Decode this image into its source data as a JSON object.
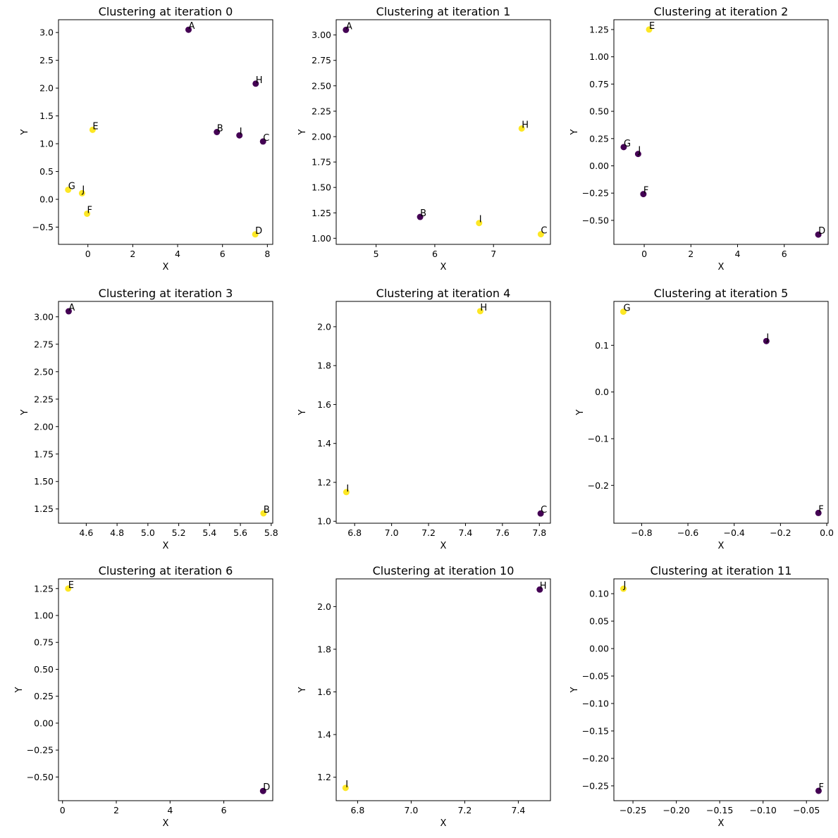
{
  "chart_data": {
    "type": "scatter",
    "colors": {
      "cluster_0": "#440154",
      "cluster_1": "#fde725"
    },
    "grid": false,
    "subplots": [
      {
        "title": "Clustering at iteration 0",
        "xlabel": "X",
        "ylabel": "Y",
        "xlim": [
          -1.31,
          8.24
        ],
        "ylim": [
          -0.81,
          3.23
        ],
        "xticks": [
          0,
          2,
          4,
          6,
          8
        ],
        "yticks": [
          -0.5,
          0.0,
          0.5,
          1.0,
          1.5,
          2.0,
          2.5,
          3.0
        ],
        "xtick_labels": [
          "0",
          "2",
          "4",
          "6",
          "8"
        ],
        "ytick_labels": [
          "−0.5",
          "0.0",
          "0.5",
          "1.0",
          "1.5",
          "2.0",
          "2.5",
          "3.0"
        ],
        "points": [
          {
            "label": "A",
            "x": 4.486,
            "y": 3.05,
            "cluster": 0
          },
          {
            "label": "H",
            "x": 7.48,
            "y": 2.08,
            "cluster": 0
          },
          {
            "label": "B",
            "x": 5.75,
            "y": 1.21,
            "cluster": 0
          },
          {
            "label": "I",
            "x": 6.755,
            "y": 1.15,
            "cluster": 0
          },
          {
            "label": "C",
            "x": 7.807,
            "y": 1.04,
            "cluster": 0
          },
          {
            "label": "E",
            "x": 0.21,
            "y": 1.25,
            "cluster": 1
          },
          {
            "label": "G",
            "x": -0.879,
            "y": 0.172,
            "cluster": 1
          },
          {
            "label": "J",
            "x": -0.261,
            "y": 0.109,
            "cluster": 1
          },
          {
            "label": "F",
            "x": -0.036,
            "y": -0.259,
            "cluster": 1
          },
          {
            "label": "D",
            "x": 7.46,
            "y": -0.63,
            "cluster": 1
          }
        ]
      },
      {
        "title": "Clustering at iteration 1",
        "xlabel": "X",
        "ylabel": "Y",
        "xlim": [
          4.32,
          7.97
        ],
        "ylim": [
          0.94,
          3.15
        ],
        "xticks": [
          5,
          6,
          7
        ],
        "yticks": [
          1.0,
          1.25,
          1.5,
          1.75,
          2.0,
          2.25,
          2.5,
          2.75,
          3.0
        ],
        "xtick_labels": [
          "5",
          "6",
          "7"
        ],
        "ytick_labels": [
          "1.00",
          "1.25",
          "1.50",
          "1.75",
          "2.00",
          "2.25",
          "2.50",
          "2.75",
          "3.00"
        ],
        "points": [
          {
            "label": "A",
            "x": 4.486,
            "y": 3.05,
            "cluster": 0
          },
          {
            "label": "B",
            "x": 5.75,
            "y": 1.21,
            "cluster": 0
          },
          {
            "label": "H",
            "x": 7.48,
            "y": 2.08,
            "cluster": 1
          },
          {
            "label": "I",
            "x": 6.755,
            "y": 1.15,
            "cluster": 1
          },
          {
            "label": "C",
            "x": 7.807,
            "y": 1.04,
            "cluster": 1
          }
        ]
      },
      {
        "title": "Clustering at iteration 2",
        "xlabel": "X",
        "ylabel": "Y",
        "xlim": [
          -1.3,
          7.88
        ],
        "ylim": [
          -0.72,
          1.34
        ],
        "xticks": [
          0,
          2,
          4,
          6
        ],
        "yticks": [
          -0.5,
          -0.25,
          0,
          0.25,
          0.5,
          0.75,
          1.0,
          1.25
        ],
        "xtick_labels": [
          "0",
          "2",
          "4",
          "6"
        ],
        "ytick_labels": [
          "−0.50",
          "−0.25",
          "0.00",
          "0.25",
          "0.50",
          "0.75",
          "1.00",
          "1.25"
        ],
        "points": [
          {
            "label": "E",
            "x": 0.21,
            "y": 1.25,
            "cluster": 1
          },
          {
            "label": "G",
            "x": -0.879,
            "y": 0.172,
            "cluster": 0
          },
          {
            "label": "J",
            "x": -0.261,
            "y": 0.109,
            "cluster": 0
          },
          {
            "label": "F",
            "x": -0.036,
            "y": -0.259,
            "cluster": 0
          },
          {
            "label": "D",
            "x": 7.46,
            "y": -0.63,
            "cluster": 0
          }
        ]
      },
      {
        "title": "Clustering at iteration 3",
        "xlabel": "X",
        "ylabel": "Y",
        "xlim": [
          4.42,
          5.81
        ],
        "ylim": [
          1.12,
          3.14
        ],
        "xticks": [
          4.6,
          4.8,
          5.0,
          5.2,
          5.4,
          5.6,
          5.8
        ],
        "yticks": [
          1.25,
          1.5,
          1.75,
          2.0,
          2.25,
          2.5,
          2.75,
          3.0
        ],
        "xtick_labels": [
          "4.6",
          "4.8",
          "5.0",
          "5.2",
          "5.4",
          "5.6",
          "5.8"
        ],
        "ytick_labels": [
          "1.25",
          "1.50",
          "1.75",
          "2.00",
          "2.25",
          "2.50",
          "2.75",
          "3.00"
        ],
        "points": [
          {
            "label": "A",
            "x": 4.486,
            "y": 3.05,
            "cluster": 0
          },
          {
            "label": "B",
            "x": 5.75,
            "y": 1.21,
            "cluster": 1
          }
        ]
      },
      {
        "title": "Clustering at iteration 4",
        "xlabel": "X",
        "ylabel": "Y",
        "xlim": [
          6.7,
          7.86
        ],
        "ylim": [
          0.99,
          2.13
        ],
        "xticks": [
          6.8,
          7.0,
          7.2,
          7.4,
          7.6,
          7.8
        ],
        "yticks": [
          1.0,
          1.2,
          1.4,
          1.6,
          1.8,
          2.0
        ],
        "xtick_labels": [
          "6.8",
          "7.0",
          "7.2",
          "7.4",
          "7.6",
          "7.8"
        ],
        "ytick_labels": [
          "1.0",
          "1.2",
          "1.4",
          "1.6",
          "1.8",
          "2.0"
        ],
        "points": [
          {
            "label": "H",
            "x": 7.48,
            "y": 2.08,
            "cluster": 1
          },
          {
            "label": "I",
            "x": 6.755,
            "y": 1.15,
            "cluster": 1
          },
          {
            "label": "C",
            "x": 7.807,
            "y": 1.04,
            "cluster": 0
          }
        ]
      },
      {
        "title": "Clustering at iteration 5",
        "xlabel": "X",
        "ylabel": "Y",
        "xlim": [
          -0.92,
          0.006
        ],
        "ylim": [
          -0.281,
          0.194
        ],
        "xticks": [
          -0.8,
          -0.6,
          -0.4,
          -0.2,
          0.0
        ],
        "yticks": [
          -0.2,
          -0.1,
          0.0,
          0.1
        ],
        "xtick_labels": [
          "−0.8",
          "−0.6",
          "−0.4",
          "−0.2",
          "0.0"
        ],
        "ytick_labels": [
          "−0.2",
          "−0.1",
          "0.0",
          "0.1"
        ],
        "points": [
          {
            "label": "G",
            "x": -0.879,
            "y": 0.172,
            "cluster": 1
          },
          {
            "label": "J",
            "x": -0.261,
            "y": 0.109,
            "cluster": 0
          },
          {
            "label": "F",
            "x": -0.036,
            "y": -0.259,
            "cluster": 0
          }
        ]
      },
      {
        "title": "Clustering at iteration 6",
        "xlabel": "X",
        "ylabel": "Y",
        "xlim": [
          -0.15,
          7.82
        ],
        "ylim": [
          -0.72,
          1.34
        ],
        "xticks": [
          0,
          2,
          4,
          6
        ],
        "yticks": [
          -0.5,
          -0.25,
          0,
          0.25,
          0.5,
          0.75,
          1.0,
          1.25
        ],
        "xtick_labels": [
          "0",
          "2",
          "4",
          "6"
        ],
        "ytick_labels": [
          "−0.50",
          "−0.25",
          "0.00",
          "0.25",
          "0.50",
          "0.75",
          "1.00",
          "1.25"
        ],
        "points": [
          {
            "label": "E",
            "x": 0.21,
            "y": 1.25,
            "cluster": 1
          },
          {
            "label": "D",
            "x": 7.46,
            "y": -0.63,
            "cluster": 0
          }
        ]
      },
      {
        "title": "Clustering at iteration 10",
        "xlabel": "X",
        "ylabel": "Y",
        "xlim": [
          6.72,
          7.52
        ],
        "ylim": [
          1.09,
          2.13
        ],
        "xticks": [
          6.8,
          7.0,
          7.2,
          7.4
        ],
        "yticks": [
          1.2,
          1.4,
          1.6,
          1.8,
          2.0
        ],
        "xtick_labels": [
          "6.8",
          "7.0",
          "7.2",
          "7.4"
        ],
        "ytick_labels": [
          "1.2",
          "1.4",
          "1.6",
          "1.8",
          "2.0"
        ],
        "points": [
          {
            "label": "H",
            "x": 7.48,
            "y": 2.08,
            "cluster": 0
          },
          {
            "label": "I",
            "x": 6.755,
            "y": 1.15,
            "cluster": 1
          }
        ]
      },
      {
        "title": "Clustering at iteration 11",
        "xlabel": "X",
        "ylabel": "Y",
        "xlim": [
          -0.272,
          -0.025
        ],
        "ylim": [
          -0.277,
          0.127
        ],
        "xticks": [
          -0.25,
          -0.2,
          -0.15,
          -0.1,
          -0.05
        ],
        "yticks": [
          -0.25,
          -0.2,
          -0.15,
          -0.1,
          -0.05,
          0,
          0.05,
          0.1
        ],
        "xtick_labels": [
          "−0.25",
          "−0.20",
          "−0.15",
          "−0.10",
          "−0.05"
        ],
        "ytick_labels": [
          "−0.25",
          "−0.20",
          "−0.15",
          "−0.10",
          "−0.05",
          "0.00",
          "0.05",
          "0.10"
        ],
        "points": [
          {
            "label": "J",
            "x": -0.261,
            "y": 0.109,
            "cluster": 1
          },
          {
            "label": "F",
            "x": -0.036,
            "y": -0.259,
            "cluster": 0
          }
        ]
      }
    ]
  }
}
